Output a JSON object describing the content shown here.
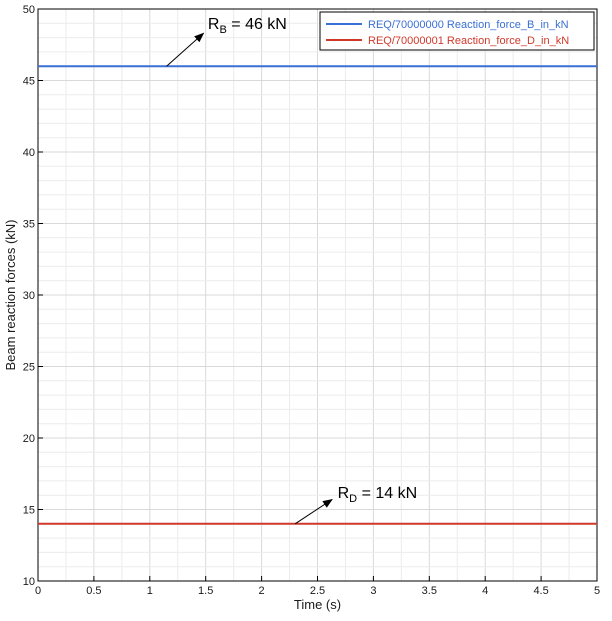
{
  "chart_data": {
    "type": "line",
    "title": "",
    "xlabel": "Time (s)",
    "ylabel": "Beam reaction forces (kN)",
    "xlim": [
      0,
      5
    ],
    "ylim": [
      10,
      50
    ],
    "x_ticks": [
      0,
      0.5,
      1,
      1.5,
      2,
      2.5,
      3,
      3.5,
      4,
      4.5,
      5
    ],
    "x_tick_labels": [
      "0",
      "0.5",
      "1",
      "1.5",
      "2",
      "2.5",
      "3",
      "3.5",
      "4",
      "4.5",
      "5"
    ],
    "y_ticks": [
      10,
      15,
      20,
      25,
      30,
      35,
      40,
      45,
      50
    ],
    "y_tick_labels": [
      "10",
      "15",
      "20",
      "25",
      "30",
      "35",
      "40",
      "45",
      "50"
    ],
    "grid": true,
    "legend_position": "top-right",
    "series": [
      {
        "name": "REQ/70000000 Reaction_force_B_in_kN",
        "color": "#3a6fd4",
        "x": [
          0,
          5
        ],
        "y": [
          46,
          46
        ]
      },
      {
        "name": "REQ/70000001 Reaction_force_D_in_kN",
        "color": "#d0392a",
        "x": [
          0,
          5
        ],
        "y": [
          14,
          14
        ]
      }
    ],
    "annotations": [
      {
        "main": "R",
        "sub": "B",
        "value_text": " = 46 kN",
        "arrow_from": [
          1.15,
          46
        ],
        "arrow_to": [
          1.48,
          48.3
        ],
        "text_at": [
          1.52,
          48.6
        ]
      },
      {
        "main": "R",
        "sub": "D",
        "value_text": " = 14 kN",
        "arrow_from": [
          2.3,
          14
        ],
        "arrow_to": [
          2.63,
          15.7
        ],
        "text_at": [
          2.68,
          15.8
        ]
      }
    ]
  }
}
